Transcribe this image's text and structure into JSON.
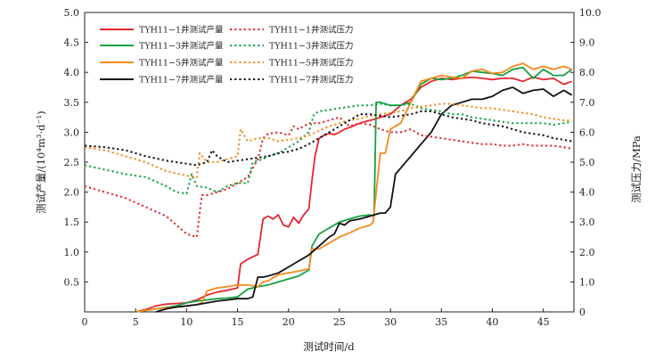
{
  "chart_data": {
    "type": "line",
    "title": "",
    "xlabel": "测试时间/d",
    "ylabel_left": "测试产量/(10⁴m³·d⁻¹)",
    "ylabel_right": "测试压力/MPa",
    "xlim": [
      0,
      48
    ],
    "ylim_left": [
      0,
      5.0
    ],
    "ylim_right": [
      0,
      10.0
    ],
    "x_ticks": [
      0,
      5,
      10,
      15,
      20,
      25,
      30,
      35,
      40,
      45
    ],
    "x_tick_labels": [
      "0",
      "5",
      "10",
      "15",
      "20",
      "25",
      "30",
      "35",
      "40",
      "45"
    ],
    "y_left_ticks": [
      0.5,
      1.0,
      1.5,
      2.0,
      2.5,
      3.0,
      3.5,
      4.0,
      4.5,
      5.0
    ],
    "y_left_tick_labels": [
      "0.5",
      "1.0",
      "1.5",
      "2.0",
      "2.5",
      "3.0",
      "3.5",
      "4.0",
      "4.5",
      "5.0"
    ],
    "y_right_ticks": [
      0,
      1.0,
      2.0,
      3.0,
      4.0,
      5.0,
      6.0,
      7.0,
      8.0,
      9.0,
      10.0
    ],
    "y_right_tick_labels": [
      "0",
      "1.0",
      "2.0",
      "3.0",
      "4.0",
      "5.0",
      "6.0",
      "7.0",
      "8.0",
      "9.0",
      "10.0"
    ],
    "grid": false,
    "legend_position": "top-left",
    "series": [
      {
        "name": "TYH11−1井测试产量",
        "axis": "left",
        "style": "solid",
        "color": "#e5262d",
        "x": [
          5,
          6,
          7,
          8,
          9,
          10,
          11,
          12,
          13,
          14,
          15,
          15.3,
          16,
          16.5,
          17,
          17.5,
          18,
          18.5,
          19,
          19.5,
          20,
          20.5,
          21,
          21.5,
          22,
          22.3,
          22.6,
          23,
          23.5,
          24,
          24.5,
          25,
          25.5,
          26,
          27,
          28,
          28.5,
          29,
          30,
          31,
          32,
          33,
          34,
          35,
          36,
          37,
          38,
          39,
          40,
          41,
          42,
          43,
          44,
          45,
          46,
          47,
          47.8
        ],
        "y": [
          0,
          0.04,
          0.1,
          0.13,
          0.14,
          0.15,
          0.2,
          0.28,
          0.33,
          0.36,
          0.4,
          0.8,
          0.88,
          0.92,
          0.96,
          1.55,
          1.6,
          1.55,
          1.62,
          1.45,
          1.42,
          1.58,
          1.48,
          1.62,
          1.72,
          2.2,
          2.6,
          2.9,
          2.95,
          2.98,
          2.96,
          3.0,
          3.05,
          3.08,
          3.15,
          3.2,
          3.22,
          3.25,
          3.3,
          3.45,
          3.55,
          3.75,
          3.85,
          3.9,
          3.88,
          3.9,
          3.92,
          3.9,
          3.88,
          3.9,
          3.9,
          3.85,
          3.92,
          3.88,
          3.9,
          3.8,
          3.85
        ]
      },
      {
        "name": "TYH11−3井测试产量",
        "axis": "left",
        "style": "solid",
        "color": "#14a044",
        "x": [
          5,
          7,
          9,
          10,
          11,
          12,
          13,
          14,
          15,
          16,
          17,
          18,
          19,
          20,
          21,
          22,
          22.3,
          23,
          24,
          25,
          26,
          27,
          28,
          28.4,
          28.6,
          29,
          30,
          31,
          32,
          33,
          34,
          35,
          36,
          37,
          38,
          39,
          40,
          41,
          42,
          43,
          44,
          45,
          46,
          47,
          47.8
        ],
        "y": [
          0,
          0.05,
          0.1,
          0.15,
          0.18,
          0.2,
          0.22,
          0.23,
          0.25,
          0.38,
          0.42,
          0.45,
          0.5,
          0.55,
          0.6,
          0.7,
          1.1,
          1.3,
          1.4,
          1.5,
          1.55,
          1.6,
          1.62,
          1.6,
          3.5,
          3.5,
          3.45,
          3.45,
          3.5,
          3.8,
          3.9,
          3.88,
          3.9,
          3.95,
          4.02,
          4.0,
          3.98,
          3.95,
          4.05,
          4.08,
          3.9,
          4.05,
          3.95,
          3.95,
          4.05
        ]
      },
      {
        "name": "TYH11−5井测试产量",
        "axis": "left",
        "style": "solid",
        "color": "#f28a1c",
        "x": [
          5,
          7,
          9,
          10,
          11,
          11.5,
          12,
          13,
          14,
          15,
          16,
          17,
          17.5,
          18,
          19,
          20,
          21,
          22,
          22.3,
          23,
          24,
          25,
          26,
          27,
          28,
          28.3,
          29,
          29.5,
          30,
          30.5,
          31,
          32,
          33,
          34,
          35,
          36,
          37,
          38,
          39,
          40,
          41,
          42,
          43,
          44,
          45,
          46,
          47,
          47.8
        ],
        "y": [
          0,
          0.05,
          0.08,
          0.1,
          0.12,
          0.15,
          0.35,
          0.4,
          0.42,
          0.45,
          0.45,
          0.42,
          0.5,
          0.52,
          0.62,
          0.65,
          0.68,
          0.72,
          1.05,
          1.05,
          1.15,
          1.25,
          1.32,
          1.4,
          1.45,
          1.5,
          2.65,
          2.65,
          3.05,
          3.1,
          3.15,
          3.5,
          3.85,
          3.9,
          3.95,
          3.92,
          3.9,
          4.02,
          4.05,
          3.98,
          4.0,
          4.1,
          4.15,
          4.05,
          4.1,
          4.05,
          4.1,
          4.05
        ]
      },
      {
        "name": "TYH11−7井测试产量",
        "axis": "left",
        "style": "solid",
        "color": "#111111",
        "x": [
          7,
          8,
          9,
          10,
          11,
          12,
          13,
          14,
          15,
          16,
          16.5,
          17,
          17.5,
          18,
          19,
          20,
          21,
          22,
          23,
          24,
          24.5,
          25,
          25.5,
          26,
          27,
          28,
          29,
          29.5,
          30,
          30.5,
          31,
          32,
          33,
          34,
          35,
          36,
          37,
          38,
          39,
          40,
          41,
          42,
          43,
          44,
          45,
          46,
          47,
          47.8
        ],
        "y": [
          0,
          0.05,
          0.08,
          0.1,
          0.12,
          0.15,
          0.18,
          0.2,
          0.22,
          0.22,
          0.25,
          0.58,
          0.58,
          0.6,
          0.65,
          0.75,
          0.85,
          0.95,
          1.1,
          1.25,
          1.3,
          1.48,
          1.45,
          1.52,
          1.55,
          1.6,
          1.65,
          1.65,
          1.75,
          2.3,
          2.4,
          2.6,
          2.8,
          3.0,
          3.3,
          3.45,
          3.5,
          3.55,
          3.55,
          3.6,
          3.7,
          3.75,
          3.65,
          3.7,
          3.72,
          3.6,
          3.7,
          3.62
        ]
      },
      {
        "name": "TYH11−1井测试压力",
        "axis": "right",
        "style": "dotted",
        "color": "#e5262d",
        "x": [
          0,
          2,
          4,
          6,
          8,
          10,
          11,
          11.5,
          12,
          13,
          14,
          15,
          16,
          17,
          17.5,
          18,
          19,
          20,
          20.5,
          21,
          22,
          23,
          24,
          25,
          26,
          27,
          28,
          29,
          30,
          31,
          32,
          33,
          34,
          35,
          36,
          37,
          38,
          39,
          40,
          41,
          42,
          43,
          44,
          45,
          46,
          47,
          47.8
        ],
        "y": [
          4.2,
          4.0,
          3.8,
          3.5,
          3.2,
          2.6,
          2.5,
          3.9,
          3.9,
          4.0,
          4.1,
          4.3,
          4.5,
          5.1,
          5.8,
          5.95,
          6.0,
          5.9,
          6.2,
          6.1,
          6.3,
          6.3,
          6.4,
          6.5,
          6.2,
          6.3,
          6.25,
          6.1,
          6.0,
          6.0,
          6.1,
          5.9,
          5.85,
          5.8,
          5.75,
          5.7,
          5.65,
          5.6,
          5.6,
          5.55,
          5.55,
          5.6,
          5.55,
          5.55,
          5.55,
          5.5,
          5.45
        ]
      },
      {
        "name": "TYH11−3井测试压力",
        "axis": "right",
        "style": "dotted",
        "color": "#14a044",
        "x": [
          0,
          2,
          4,
          6,
          8,
          9,
          10,
          10.5,
          11,
          12,
          13,
          14,
          15,
          16,
          16.5,
          17,
          17.5,
          18,
          19,
          20,
          21,
          22,
          22.5,
          23,
          24,
          25,
          26,
          27,
          28,
          29,
          30,
          31,
          32,
          33,
          34,
          35,
          36,
          37,
          38,
          39,
          40,
          41,
          42,
          43,
          44,
          45,
          46,
          47,
          47.8
        ],
        "y": [
          4.9,
          4.75,
          4.6,
          4.5,
          4.2,
          4.0,
          3.95,
          4.6,
          4.2,
          4.15,
          4.0,
          4.2,
          4.3,
          4.3,
          5.0,
          5.05,
          5.1,
          5.2,
          5.3,
          5.5,
          5.7,
          6.0,
          6.6,
          6.7,
          6.75,
          6.8,
          6.85,
          6.9,
          6.9,
          6.95,
          6.9,
          6.9,
          6.95,
          6.8,
          6.75,
          6.7,
          6.6,
          6.6,
          6.5,
          6.45,
          6.4,
          6.35,
          6.3,
          6.3,
          6.3,
          6.3,
          6.25,
          6.3,
          6.35
        ]
      },
      {
        "name": "TYH11−5井测试压力",
        "axis": "right",
        "style": "dotted",
        "color": "#f28a1c",
        "x": [
          0,
          2,
          4,
          6,
          8,
          10,
          11,
          11.3,
          12,
          13,
          14,
          15,
          15.3,
          16,
          17,
          18,
          19,
          20,
          21,
          22,
          23,
          24,
          25,
          26,
          27,
          28,
          29,
          30,
          31,
          32,
          33,
          34,
          35,
          36,
          37,
          38,
          39,
          40,
          41,
          42,
          43,
          44,
          45,
          46,
          47,
          47.8
        ],
        "y": [
          5.5,
          5.4,
          5.2,
          5.0,
          4.7,
          4.55,
          4.5,
          5.3,
          5.0,
          5.0,
          5.1,
          5.2,
          6.1,
          5.7,
          5.8,
          5.8,
          5.7,
          5.75,
          5.8,
          5.9,
          6.05,
          6.2,
          6.3,
          6.4,
          6.45,
          6.55,
          6.6,
          6.65,
          6.7,
          6.8,
          6.85,
          6.9,
          6.95,
          6.95,
          6.9,
          6.85,
          6.8,
          6.8,
          6.75,
          6.7,
          6.65,
          6.6,
          6.5,
          6.45,
          6.4,
          6.4
        ]
      },
      {
        "name": "TYH11−7井测试压力",
        "axis": "right",
        "style": "dotted",
        "color": "#111111",
        "x": [
          0,
          2,
          4,
          6,
          8,
          10,
          11,
          12,
          12.5,
          13,
          14,
          15,
          16,
          17,
          18,
          19,
          20,
          21,
          22,
          23,
          24,
          25,
          26,
          27,
          28,
          29,
          30,
          31,
          32,
          33,
          34,
          35,
          36,
          37,
          38,
          39,
          40,
          41,
          42,
          43,
          44,
          45,
          46,
          47,
          47.8
        ],
        "y": [
          5.55,
          5.5,
          5.4,
          5.2,
          5.05,
          4.95,
          4.9,
          5.0,
          5.4,
          5.2,
          5.0,
          5.05,
          5.1,
          5.15,
          5.2,
          5.3,
          5.35,
          5.45,
          5.6,
          5.8,
          6.0,
          6.2,
          6.4,
          6.6,
          6.6,
          6.55,
          6.5,
          6.55,
          6.6,
          6.7,
          6.7,
          6.6,
          6.5,
          6.45,
          6.4,
          6.3,
          6.25,
          6.2,
          6.1,
          6.0,
          5.95,
          5.9,
          5.8,
          5.75,
          5.7
        ]
      }
    ]
  }
}
